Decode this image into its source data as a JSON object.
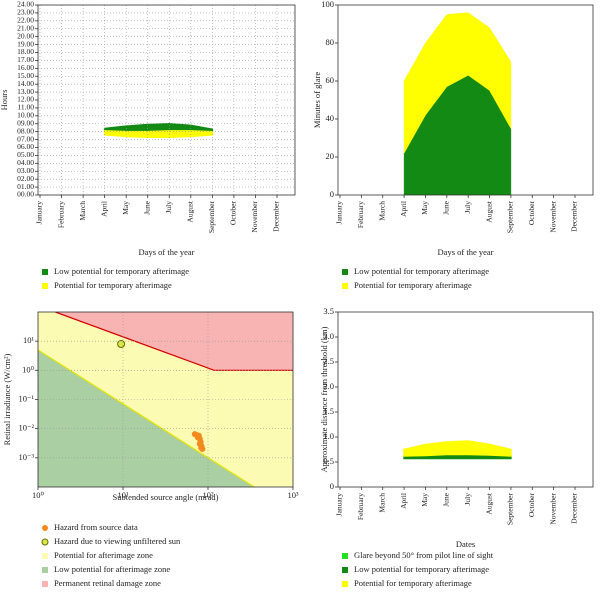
{
  "chart_data": [
    {
      "type": "band",
      "ylabel": "Hours",
      "xlabel": "Days of the year",
      "categories": [
        "January",
        "February",
        "March",
        "April",
        "May",
        "June",
        "July",
        "August",
        "September",
        "October",
        "November",
        "December"
      ],
      "ylim": [
        0,
        24
      ],
      "yticks": [
        {
          "value": 0,
          "label": "00.00"
        },
        {
          "value": 1,
          "label": "01.00"
        },
        {
          "value": 2,
          "label": "02.00"
        },
        {
          "value": 3,
          "label": "03.00"
        },
        {
          "value": 4,
          "label": "04.00"
        },
        {
          "value": 5,
          "label": "05.00"
        },
        {
          "value": 6,
          "label": "06.00"
        },
        {
          "value": 7,
          "label": "07.00"
        },
        {
          "value": 8,
          "label": "08.00"
        },
        {
          "value": 9,
          "label": "09.00"
        },
        {
          "value": 10,
          "label": "10.00"
        },
        {
          "value": 11,
          "label": "11.00"
        },
        {
          "value": 12,
          "label": "12.00"
        },
        {
          "value": 13,
          "label": "13.00"
        },
        {
          "value": 14,
          "label": "14.00"
        },
        {
          "value": 15,
          "label": "15.00"
        },
        {
          "value": 16,
          "label": "16.00"
        },
        {
          "value": 17,
          "label": "17.00"
        },
        {
          "value": 18,
          "label": "18.00"
        },
        {
          "value": 19,
          "label": "19.00"
        },
        {
          "value": 20,
          "label": "20.00"
        },
        {
          "value": 21,
          "label": "21.00"
        },
        {
          "value": 22,
          "label": "22.00"
        },
        {
          "value": 23,
          "label": "23.00"
        },
        {
          "value": 24,
          "label": "24.00"
        }
      ],
      "grid": true,
      "series": [
        {
          "name": "Low potential for temporary afterimage",
          "color": "#138a13",
          "low": [
            null,
            null,
            null,
            8.1,
            8.0,
            8.0,
            8.1,
            8.1,
            8.0,
            null,
            null,
            null
          ],
          "high": [
            null,
            null,
            null,
            8.4,
            8.7,
            8.9,
            9.0,
            8.8,
            8.3,
            null,
            null,
            null
          ]
        },
        {
          "name": "Potential for temporary afterimage",
          "color": "#ffff00",
          "low": [
            null,
            null,
            null,
            7.6,
            7.4,
            7.3,
            7.3,
            7.4,
            7.6,
            null,
            null,
            null
          ],
          "high": [
            null,
            null,
            null,
            8.1,
            8.0,
            8.0,
            8.1,
            8.1,
            8.0,
            null,
            null,
            null
          ]
        }
      ]
    },
    {
      "type": "stacked-area",
      "ylabel": "Minutes of glare",
      "xlabel": "Days of the year",
      "categories": [
        "January",
        "February",
        "March",
        "April",
        "May",
        "June",
        "July",
        "August",
        "September",
        "October",
        "November",
        "December"
      ],
      "ylim": [
        0,
        100
      ],
      "yticks": [
        0,
        20,
        40,
        60,
        80,
        100
      ],
      "series": [
        {
          "name": "Low potential for temporary afterimage",
          "color": "#138a13",
          "values": [
            null,
            null,
            null,
            22,
            42,
            57,
            63,
            55,
            35,
            null,
            null,
            null
          ]
        },
        {
          "name": "Potential for temporary afterimage",
          "color": "#ffff00",
          "values": [
            null,
            null,
            null,
            38,
            38,
            38,
            33,
            33,
            35,
            null,
            null,
            null
          ]
        }
      ]
    },
    {
      "type": "scatter",
      "ylabel": "Retinal irradiance (W/cm²)",
      "xlabel": "Subtended source angle (mrad)",
      "xlog": true,
      "ylog": true,
      "grid": true,
      "xlim": [
        1,
        1000
      ],
      "xticks": [
        {
          "value": 1,
          "label": "10⁰"
        },
        {
          "value": 10,
          "label": "10¹"
        },
        {
          "value": 100,
          "label": "10²"
        },
        {
          "value": 1000,
          "label": "10³"
        }
      ],
      "ylim": [
        0.0001,
        100
      ],
      "yticks": [
        {
          "value": 0.001,
          "label": "10⁻³"
        },
        {
          "value": 0.01,
          "label": "10⁻²"
        },
        {
          "value": 0.1,
          "label": "10⁻¹"
        },
        {
          "value": 1,
          "label": "10⁰"
        },
        {
          "value": 10,
          "label": "10¹"
        }
      ],
      "series": [
        {
          "name": "Hazard from source data",
          "color": "#f28a1e",
          "x": [
            70,
            74,
            78,
            76,
            80,
            82,
            80,
            84,
            86,
            83
          ],
          "values": [
            0.0065,
            0.006,
            0.0058,
            0.005,
            0.0045,
            0.0035,
            0.003,
            0.0025,
            0.002,
            0.0022
          ]
        },
        {
          "name": "Hazard due to viewing unfiltered sun",
          "color": "#d8e84a",
          "edgecolor": "#6b6b00",
          "x": [
            9.5
          ],
          "values": [
            8
          ]
        }
      ],
      "zones": [
        {
          "name": "Potential for afterimage zone",
          "color": "#fbfbb4"
        },
        {
          "name": "Low potential for afterimage zone",
          "color": "#a9cfa3",
          "edgecolor": "#e6e600",
          "x": [
            1,
            350
          ],
          "y": [
            5,
            0.0001
          ]
        },
        {
          "name": "Permanent retinal damage zone",
          "color": "#f8b3b3",
          "edgecolor": "#d40000",
          "x": [
            1.6,
            118,
            1000
          ],
          "y": [
            100,
            1,
            1
          ]
        }
      ]
    },
    {
      "type": "band",
      "ylabel": "Approximate distance from threshold (km)",
      "xlabel": "Dates",
      "categories": [
        "January",
        "February",
        "March",
        "April",
        "May",
        "June",
        "July",
        "August",
        "September",
        "October",
        "November",
        "December"
      ],
      "ylim": [
        0,
        3.5
      ],
      "yticks": [
        0,
        0.5,
        {
          "value": 1,
          "label": "1.0"
        },
        1.5,
        {
          "value": 2,
          "label": "2.0"
        },
        2.5,
        {
          "value": 3,
          "label": "3.0"
        },
        3.5
      ],
      "series": [
        {
          "name": "Glare beyond 50° from pilot line of sight",
          "color": "#22e022"
        },
        {
          "name": "Low potential for temporary afterimage",
          "color": "#138a13",
          "low": [
            null,
            null,
            null,
            0.57,
            0.57,
            0.57,
            0.57,
            0.57,
            0.57,
            null,
            null,
            null
          ],
          "high": [
            null,
            null,
            null,
            0.62,
            0.63,
            0.65,
            0.65,
            0.64,
            0.62,
            null,
            null,
            null
          ]
        },
        {
          "name": "Potential for temporary afterimage",
          "color": "#ffff00",
          "low": [
            null,
            null,
            null,
            0.62,
            0.63,
            0.65,
            0.65,
            0.64,
            0.62,
            null,
            null,
            null
          ],
          "high": [
            null,
            null,
            null,
            0.75,
            0.85,
            0.9,
            0.92,
            0.85,
            0.75,
            null,
            null,
            null
          ]
        }
      ]
    }
  ]
}
